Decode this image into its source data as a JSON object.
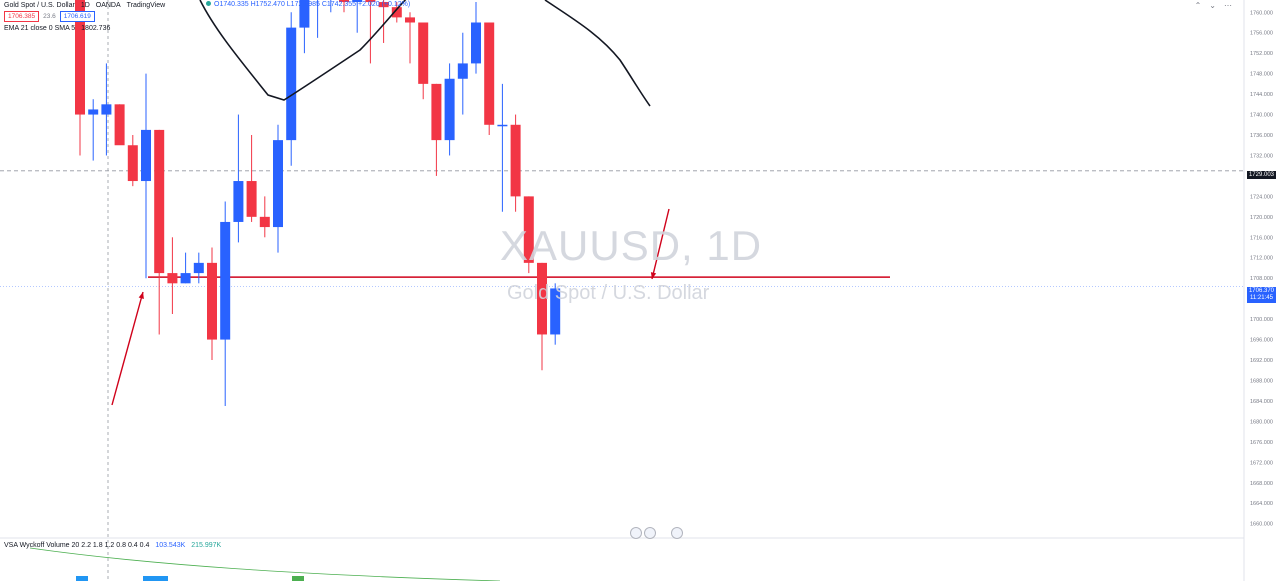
{
  "header": {
    "symbol": "Gold Spot / U.S. Dollar",
    "interval": "1D",
    "exchange": "OANDA",
    "source": "TradingView",
    "ohlc": "O1740.335 H1752.470 L1729.985 C1742.355 +2.020 (+0.12%)"
  },
  "price_boxes": {
    "bid": "1706.385",
    "spread": "23.6",
    "ask": "1706.619"
  },
  "indicator": {
    "label": "EMA 21 close 0 SMA 5",
    "value": "1802.736"
  },
  "volume_indicator": {
    "label": "VSA Wyckoff Volume 20 2.2 1.8 1.2 0.8 0.4 0.4",
    "v1": "103.543K",
    "v2": "215.997K"
  },
  "watermark": {
    "title": "XAUUSD, 1D",
    "subtitle": "Gold Spot / U.S. Dollar"
  },
  "axis_tags": {
    "level": "1729.003",
    "current": "1706.370",
    "countdown": "11:21:45"
  },
  "icons": [
    "chevron-up-icon",
    "chevron-down-icon",
    "more-icon"
  ],
  "colors": {
    "up": "#2962ff",
    "down": "#f23645",
    "ema": "#131722",
    "annotation": "#d0021b"
  },
  "chart_data": {
    "type": "candlestick",
    "title": "XAUUSD, 1D",
    "ylim": [
      1657,
      1762
    ],
    "yticks": [
      "1760.000",
      "1756.000",
      "1752.000",
      "1748.000",
      "1744.000",
      "1740.000",
      "1736.000",
      "1732.000",
      "1728.000",
      "1724.000",
      "1720.000",
      "1716.000",
      "1712.000",
      "1708.000",
      "1704.000",
      "1700.000",
      "1696.000",
      "1692.000",
      "1688.000",
      "1684.000",
      "1680.000",
      "1676.000",
      "1672.000",
      "1668.000",
      "1664.000",
      "1660.000"
    ],
    "candles": [
      {
        "o": 1766,
        "h": 1772,
        "l": 1732,
        "c": 1740
      },
      {
        "o": 1740,
        "h": 1743,
        "l": 1731,
        "c": 1741
      },
      {
        "o": 1740,
        "h": 1750,
        "l": 1732,
        "c": 1742
      },
      {
        "o": 1742,
        "h": 1742,
        "l": 1735,
        "c": 1734
      },
      {
        "o": 1734,
        "h": 1736,
        "l": 1726,
        "c": 1727
      },
      {
        "o": 1727,
        "h": 1748,
        "l": 1708,
        "c": 1737
      },
      {
        "o": 1737,
        "h": 1737,
        "l": 1697,
        "c": 1709
      },
      {
        "o": 1709,
        "h": 1716,
        "l": 1701,
        "c": 1707
      },
      {
        "o": 1707,
        "h": 1713,
        "l": 1707,
        "c": 1709
      },
      {
        "o": 1709,
        "h": 1713,
        "l": 1707,
        "c": 1711
      },
      {
        "o": 1711,
        "h": 1714,
        "l": 1692,
        "c": 1696
      },
      {
        "o": 1696,
        "h": 1723,
        "l": 1683,
        "c": 1719
      },
      {
        "o": 1719,
        "h": 1740,
        "l": 1715,
        "c": 1727
      },
      {
        "o": 1727,
        "h": 1736,
        "l": 1719,
        "c": 1720
      },
      {
        "o": 1720,
        "h": 1724,
        "l": 1716,
        "c": 1718
      },
      {
        "o": 1718,
        "h": 1738,
        "l": 1713,
        "c": 1735
      },
      {
        "o": 1735,
        "h": 1760,
        "l": 1730,
        "c": 1757
      },
      {
        "o": 1757,
        "h": 1766,
        "l": 1752,
        "c": 1764
      },
      {
        "o": 1764,
        "h": 1769,
        "l": 1755,
        "c": 1768
      },
      {
        "o": 1768,
        "h": 1773,
        "l": 1760,
        "c": 1772
      },
      {
        "o": 1772,
        "h": 1772,
        "l": 1760,
        "c": 1762
      },
      {
        "o": 1762,
        "h": 1772,
        "l": 1756,
        "c": 1770
      },
      {
        "o": 1770,
        "h": 1775,
        "l": 1750,
        "c": 1762
      },
      {
        "o": 1762,
        "h": 1766,
        "l": 1754,
        "c": 1761
      },
      {
        "o": 1761,
        "h": 1762,
        "l": 1758,
        "c": 1759
      },
      {
        "o": 1759,
        "h": 1760,
        "l": 1750,
        "c": 1758
      },
      {
        "o": 1758,
        "h": 1758,
        "l": 1743,
        "c": 1746
      },
      {
        "o": 1746,
        "h": 1746,
        "l": 1728,
        "c": 1735
      },
      {
        "o": 1735,
        "h": 1750,
        "l": 1732,
        "c": 1747
      },
      {
        "o": 1747,
        "h": 1756,
        "l": 1740,
        "c": 1750
      },
      {
        "o": 1750,
        "h": 1762,
        "l": 1748,
        "c": 1758
      },
      {
        "o": 1758,
        "h": 1758,
        "l": 1736,
        "c": 1738
      },
      {
        "o": 1738,
        "h": 1746,
        "l": 1721,
        "c": 1738
      },
      {
        "o": 1738,
        "h": 1740,
        "l": 1721,
        "c": 1724
      },
      {
        "o": 1724,
        "h": 1724,
        "l": 1709,
        "c": 1711
      },
      {
        "o": 1711,
        "h": 1711,
        "l": 1690,
        "c": 1697
      },
      {
        "o": 1697,
        "h": 1707,
        "l": 1695,
        "c": 1706
      }
    ],
    "ema": [
      1774,
      1768,
      1762,
      1757,
      1752,
      1748,
      1744,
      1743,
      1745,
      1749,
      1753,
      1757,
      1762,
      1767,
      1773,
      1778
    ],
    "horizontal_lines": [
      {
        "y": 1729.003,
        "style": "dashed"
      },
      {
        "y": 1708.2,
        "style": "solid",
        "color": "#d0021b"
      },
      {
        "y": 1706.37,
        "style": "dotted"
      }
    ],
    "volume": [
      10,
      0,
      0,
      0,
      0,
      20,
      18,
      0,
      0,
      0,
      0,
      0,
      0,
      0,
      0,
      0,
      0,
      12
    ]
  }
}
